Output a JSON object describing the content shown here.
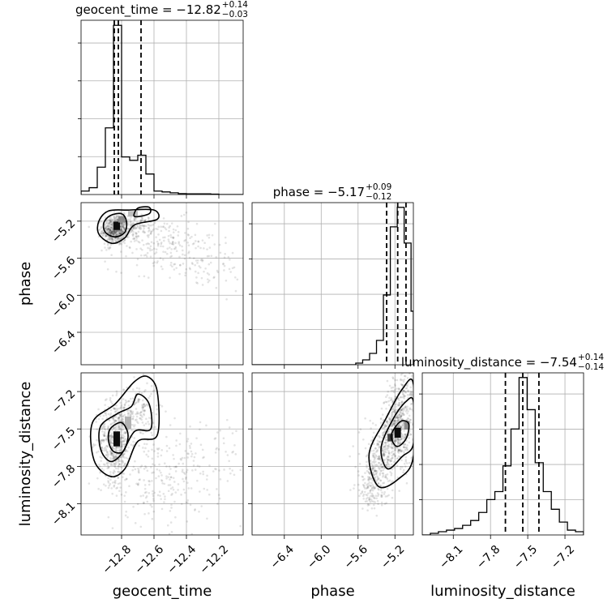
{
  "chart_data": {
    "type": "corner",
    "parameters": [
      {
        "key": "geocent_time",
        "label": "geocent_time",
        "title_prefix": "geocent_time = ",
        "median": "−12.82",
        "plus": "+0.14",
        "minus": "−0.03",
        "range": [
          -13.05,
          -12.05
        ],
        "ticks": [
          -12.8,
          -12.6,
          -12.4,
          -12.2
        ],
        "tick_labels": [
          "−12.8",
          "−12.6",
          "−12.4",
          "−12.2"
        ],
        "quantiles": [
          -12.845,
          -12.82,
          -12.68
        ],
        "hist_edges": [
          -13.05,
          -13.0,
          -12.95,
          -12.9,
          -12.85,
          -12.8,
          -12.75,
          -12.7,
          -12.65,
          -12.6,
          -12.55,
          -12.5,
          -12.45,
          -12.4,
          -12.35,
          -12.3,
          -12.25,
          -12.2,
          -12.15,
          -12.1,
          -12.05
        ],
        "hist_counts": [
          0.02,
          0.04,
          0.16,
          0.39,
          0.99,
          0.22,
          0.2,
          0.23,
          0.12,
          0.02,
          0.015,
          0.01,
          0.005,
          0.004,
          0.004,
          0.004,
          0.002,
          0.0,
          0.0,
          0.0
        ]
      },
      {
        "key": "phase",
        "label": "phase",
        "title_prefix": "phase = ",
        "median": "−5.17",
        "plus": "+0.09",
        "minus": "−0.12",
        "range": [
          -6.75,
          -5.0
        ],
        "ticks": [
          -6.4,
          -6.0,
          -5.6,
          -5.2
        ],
        "tick_labels": [
          "−6.4",
          "−6.0",
          "−5.6",
          "−5.2"
        ],
        "quantiles": [
          -5.29,
          -5.17,
          -5.08
        ],
        "hist_edges": [
          -6.75,
          -6.675,
          -6.6,
          -6.525,
          -6.45,
          -6.375,
          -6.3,
          -6.225,
          -6.15,
          -6.075,
          -6.0,
          -5.925,
          -5.85,
          -5.775,
          -5.7,
          -5.625,
          -5.55,
          -5.475,
          -5.4,
          -5.325,
          -5.25,
          -5.175,
          -5.1,
          -5.025,
          -5.0
        ],
        "hist_counts": [
          0,
          0,
          0,
          0,
          0,
          0,
          0,
          0,
          0,
          0,
          0,
          0,
          0,
          0,
          0,
          0.01,
          0.03,
          0.07,
          0.15,
          0.43,
          0.85,
          0.97,
          0.75,
          0.33
        ]
      },
      {
        "key": "luminosity_distance",
        "label": "luminosity_distance",
        "title_prefix": "luminosity_distance = ",
        "median": "−7.54",
        "plus": "+0.14",
        "minus": "−0.14",
        "range": [
          -8.35,
          -7.05
        ],
        "ticks": [
          -8.1,
          -7.8,
          -7.5,
          -7.2
        ],
        "tick_labels": [
          "−8.1",
          "−7.8",
          "−7.5",
          "−7.2"
        ],
        "quantiles": [
          -7.68,
          -7.54,
          -7.41
        ],
        "hist_edges": [
          -8.35,
          -8.285,
          -8.22,
          -8.155,
          -8.09,
          -8.025,
          -7.96,
          -7.895,
          -7.83,
          -7.765,
          -7.7,
          -7.635,
          -7.57,
          -7.505,
          -7.44,
          -7.375,
          -7.31,
          -7.245,
          -7.18,
          -7.115,
          -7.05
        ],
        "hist_counts": [
          0.0,
          0.01,
          0.02,
          0.03,
          0.04,
          0.06,
          0.09,
          0.14,
          0.22,
          0.27,
          0.43,
          0.66,
          0.98,
          0.78,
          0.45,
          0.27,
          0.16,
          0.08,
          0.03,
          0.02
        ]
      }
    ],
    "pairs": [
      {
        "x": "geocent_time",
        "y": "phase",
        "scatter_clusters": [
          {
            "cx": -12.84,
            "cy": -5.3,
            "sx": 0.04,
            "sy": 0.08,
            "n": 500
          },
          {
            "cx": -12.72,
            "cy": -5.25,
            "sx": 0.06,
            "sy": 0.06,
            "n": 140
          },
          {
            "cx": -12.55,
            "cy": -5.45,
            "sx": 0.16,
            "sy": 0.14,
            "n": 180
          },
          {
            "cx": -12.3,
            "cy": -5.65,
            "sx": 0.16,
            "sy": 0.15,
            "n": 90
          }
        ],
        "contours": [
          [
            [
              -12.91,
              -5.22
            ],
            [
              -12.87,
              -5.14
            ],
            [
              -12.8,
              -5.12
            ],
            [
              -12.77,
              -5.2
            ],
            [
              -12.78,
              -5.32
            ],
            [
              -12.84,
              -5.37
            ],
            [
              -12.9,
              -5.32
            ]
          ],
          [
            [
              -12.94,
              -5.2
            ],
            [
              -12.88,
              -5.09
            ],
            [
              -12.76,
              -5.08
            ],
            [
              -12.6,
              -5.08
            ],
            [
              -12.58,
              -5.18
            ],
            [
              -12.72,
              -5.24
            ],
            [
              -12.78,
              -5.38
            ],
            [
              -12.86,
              -5.44
            ],
            [
              -12.94,
              -5.34
            ]
          ],
          [
            [
              -12.72,
              -5.15
            ],
            [
              -12.7,
              -5.06
            ],
            [
              -12.63,
              -5.05
            ],
            [
              -12.63,
              -5.12
            ]
          ]
        ],
        "density_peaks": [
          {
            "x": -12.83,
            "y": -5.25,
            "w": 0.04,
            "h": 0.09,
            "shade": 0.95
          },
          {
            "x": -12.8,
            "y": -5.18,
            "w": 0.04,
            "h": 0.07,
            "shade": 0.45
          },
          {
            "x": -12.73,
            "y": -5.12,
            "w": 0.06,
            "h": 0.06,
            "shade": 0.25
          }
        ]
      },
      {
        "x": "geocent_time",
        "y": "luminosity_distance",
        "scatter_clusters": [
          {
            "cx": -12.84,
            "cy": -7.6,
            "sx": 0.05,
            "sy": 0.16,
            "n": 520
          },
          {
            "cx": -12.7,
            "cy": -7.35,
            "sx": 0.06,
            "sy": 0.12,
            "n": 160
          },
          {
            "cx": -12.6,
            "cy": -7.9,
            "sx": 0.16,
            "sy": 0.18,
            "n": 200
          },
          {
            "cx": -12.3,
            "cy": -7.75,
            "sx": 0.18,
            "sy": 0.2,
            "n": 110
          }
        ],
        "contours": [
          [
            [
              -12.87,
              -7.5
            ],
            [
              -12.8,
              -7.45
            ],
            [
              -12.76,
              -7.55
            ],
            [
              -12.79,
              -7.68
            ],
            [
              -12.85,
              -7.68
            ],
            [
              -12.88,
              -7.6
            ]
          ],
          [
            [
              -12.93,
              -7.48
            ],
            [
              -12.83,
              -7.38
            ],
            [
              -12.74,
              -7.32
            ],
            [
              -12.7,
              -7.22
            ],
            [
              -12.63,
              -7.3
            ],
            [
              -12.62,
              -7.5
            ],
            [
              -12.72,
              -7.52
            ],
            [
              -12.8,
              -7.7
            ],
            [
              -12.87,
              -7.76
            ],
            [
              -12.93,
              -7.66
            ]
          ],
          [
            [
              -12.98,
              -7.45
            ],
            [
              -12.84,
              -7.3
            ],
            [
              -12.72,
              -7.12
            ],
            [
              -12.64,
              -7.08
            ],
            [
              -12.58,
              -7.2
            ],
            [
              -12.58,
              -7.55
            ],
            [
              -12.7,
              -7.6
            ],
            [
              -12.78,
              -7.82
            ],
            [
              -12.87,
              -7.88
            ],
            [
              -12.97,
              -7.75
            ]
          ]
        ],
        "density_peaks": [
          {
            "x": -12.83,
            "y": -7.58,
            "w": 0.04,
            "h": 0.12,
            "shade": 0.95
          },
          {
            "x": -12.76,
            "y": -7.45,
            "w": 0.04,
            "h": 0.1,
            "shade": 0.3
          }
        ]
      },
      {
        "x": "phase",
        "y": "luminosity_distance",
        "scatter_clusters": [
          {
            "cx": -5.18,
            "cy": -7.5,
            "sx": 0.09,
            "sy": 0.14,
            "n": 500
          },
          {
            "cx": -5.35,
            "cy": -7.75,
            "sx": 0.11,
            "sy": 0.14,
            "n": 260
          },
          {
            "cx": -5.45,
            "cy": -7.98,
            "sx": 0.09,
            "sy": 0.1,
            "n": 130
          },
          {
            "cx": -5.1,
            "cy": -7.2,
            "sx": 0.08,
            "sy": 0.08,
            "n": 110
          }
        ],
        "contours": [
          [
            [
              -5.24,
              -7.55
            ],
            [
              -5.14,
              -7.44
            ],
            [
              -5.05,
              -7.46
            ],
            [
              -5.08,
              -7.58
            ],
            [
              -5.18,
              -7.64
            ]
          ],
          [
            [
              -5.35,
              -7.65
            ],
            [
              -5.22,
              -7.42
            ],
            [
              -5.08,
              -7.28
            ],
            [
              -5.0,
              -7.28
            ],
            [
              -5.0,
              -7.62
            ],
            [
              -5.12,
              -7.72
            ],
            [
              -5.28,
              -7.82
            ]
          ],
          [
            [
              -5.48,
              -7.7
            ],
            [
              -5.3,
              -7.42
            ],
            [
              -5.12,
              -7.18
            ],
            [
              -5.0,
              -7.14
            ],
            [
              -5.0,
              -7.72
            ],
            [
              -5.16,
              -7.9
            ],
            [
              -5.38,
              -7.96
            ]
          ]
        ],
        "density_peaks": [
          {
            "x": -5.17,
            "y": -7.53,
            "w": 0.07,
            "h": 0.08,
            "shade": 0.95
          },
          {
            "x": -5.25,
            "y": -7.57,
            "w": 0.06,
            "h": 0.06,
            "shade": 0.75
          },
          {
            "x": -5.07,
            "y": -7.47,
            "w": 0.06,
            "h": 0.07,
            "shade": 0.45
          }
        ]
      }
    ]
  }
}
